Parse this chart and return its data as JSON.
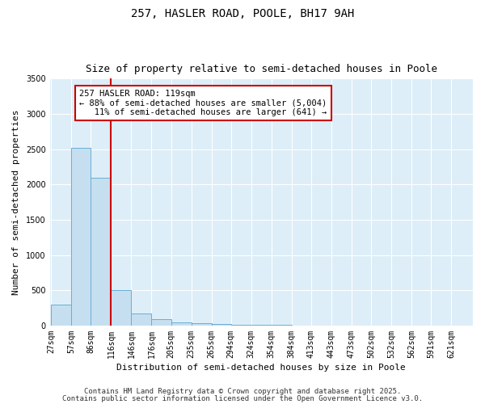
{
  "title": "257, HASLER ROAD, POOLE, BH17 9AH",
  "subtitle": "Size of property relative to semi-detached houses in Poole",
  "xlabel": "Distribution of semi-detached houses by size in Poole",
  "ylabel": "Number of semi-detached properties",
  "bins": [
    27,
    57,
    86,
    116,
    146,
    176,
    205,
    235,
    265,
    294,
    324,
    354,
    384,
    413,
    443,
    473,
    502,
    532,
    562,
    591,
    621
  ],
  "counts": [
    300,
    2520,
    2100,
    500,
    175,
    90,
    50,
    30,
    20,
    15,
    10,
    8,
    5,
    4,
    3,
    2,
    2,
    1,
    1,
    1,
    0
  ],
  "bar_color": "#c6dff0",
  "bar_edge_color": "#6aaed6",
  "property_line_x": 116,
  "property_line_color": "#cc0000",
  "annotation_line1": "257 HASLER ROAD: 119sqm",
  "annotation_line2": "← 88% of semi-detached houses are smaller (5,004)",
  "annotation_line3": "11% of semi-detached houses are larger (641) →",
  "annotation_box_color": "#cc0000",
  "ylim": [
    0,
    3500
  ],
  "yticks": [
    0,
    500,
    1000,
    1500,
    2000,
    2500,
    3000,
    3500
  ],
  "fig_bg_color": "#ffffff",
  "plot_bg_color": "#ddeef8",
  "title_fontsize": 10,
  "subtitle_fontsize": 9,
  "axis_label_fontsize": 8,
  "tick_fontsize": 7,
  "footer_fontsize": 6.5,
  "footer_line1": "Contains HM Land Registry data © Crown copyright and database right 2025.",
  "footer_line2": "Contains public sector information licensed under the Open Government Licence v3.0."
}
